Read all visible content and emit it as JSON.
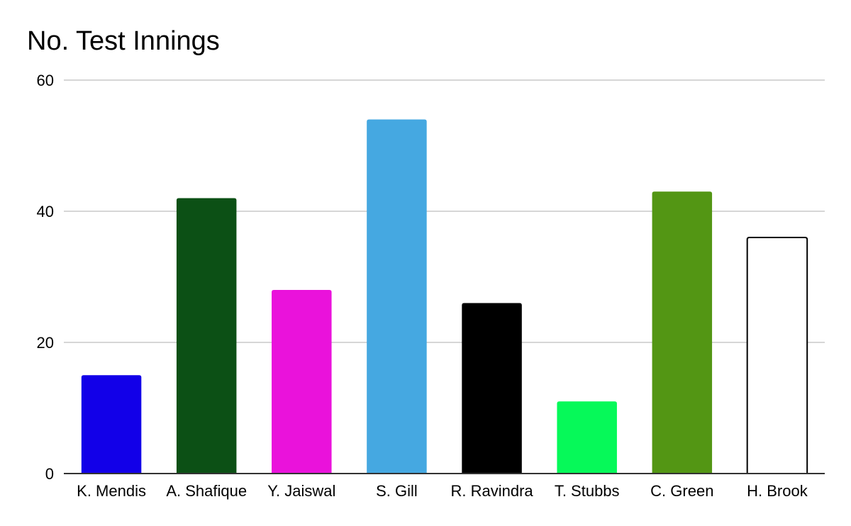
{
  "chart_data": {
    "type": "bar",
    "title": "No. Test Innings",
    "xlabel": "",
    "ylabel": "",
    "ylim": [
      0,
      60
    ],
    "yticks": [
      0,
      20,
      40,
      60
    ],
    "grid": true,
    "legend": "none",
    "categories": [
      "K. Mendis",
      "A. Shafique",
      "Y. Jaiswal",
      "S. Gill",
      "R. Ravindra",
      "T. Stubbs",
      "C. Green",
      "H. Brook"
    ],
    "values": [
      15,
      42,
      28,
      54,
      26,
      11,
      43,
      36
    ],
    "colors": [
      "#1200e8",
      "#0c5015",
      "#ea12db",
      "#45a8e1",
      "#000000",
      "#06f959",
      "#539614",
      "#ffffff"
    ],
    "outline_colors": [
      "#1200e8",
      "#0c5015",
      "#ea12db",
      "#45a8e1",
      "#000000",
      "#06f959",
      "#539614",
      "#000000"
    ],
    "gridline_color": "#c8c8c8",
    "axis_color": "#333333"
  }
}
